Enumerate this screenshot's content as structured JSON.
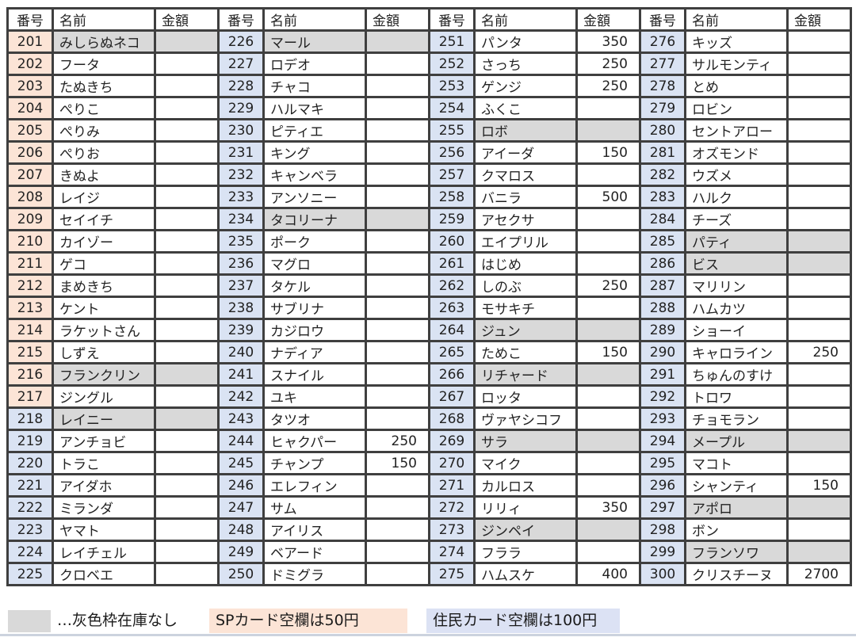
{
  "table": {
    "headers": [
      "番号",
      "名前",
      "金額"
    ],
    "row_count": 25,
    "sp_card_max_no": 217,
    "groups": [
      {
        "rows": [
          {
            "no": "201",
            "name": "みしらぬネコ",
            "price": "",
            "in_stock": false
          },
          {
            "no": "202",
            "name": "フータ",
            "price": ""
          },
          {
            "no": "203",
            "name": "たぬきち",
            "price": ""
          },
          {
            "no": "204",
            "name": "ぺりこ",
            "price": ""
          },
          {
            "no": "205",
            "name": "ぺりみ",
            "price": ""
          },
          {
            "no": "206",
            "name": "ぺりお",
            "price": ""
          },
          {
            "no": "207",
            "name": "きぬよ",
            "price": ""
          },
          {
            "no": "208",
            "name": "レイジ",
            "price": ""
          },
          {
            "no": "209",
            "name": "セイイチ",
            "price": ""
          },
          {
            "no": "210",
            "name": "カイゾー",
            "price": ""
          },
          {
            "no": "211",
            "name": "ゲコ",
            "price": ""
          },
          {
            "no": "212",
            "name": "まめきち",
            "price": ""
          },
          {
            "no": "213",
            "name": "ケント",
            "price": ""
          },
          {
            "no": "214",
            "name": "ラケットさん",
            "price": ""
          },
          {
            "no": "215",
            "name": "しずえ",
            "price": ""
          },
          {
            "no": "216",
            "name": "フランクリン",
            "price": "",
            "in_stock": false
          },
          {
            "no": "217",
            "name": "ジングル",
            "price": ""
          },
          {
            "no": "218",
            "name": "レイニー",
            "price": "",
            "in_stock": false
          },
          {
            "no": "219",
            "name": "アンチョビ",
            "price": ""
          },
          {
            "no": "220",
            "name": "トラこ",
            "price": ""
          },
          {
            "no": "221",
            "name": "アイダホ",
            "price": ""
          },
          {
            "no": "222",
            "name": "ミランダ",
            "price": ""
          },
          {
            "no": "223",
            "name": "ヤマト",
            "price": ""
          },
          {
            "no": "224",
            "name": "レイチェル",
            "price": ""
          },
          {
            "no": "225",
            "name": "クロベエ",
            "price": ""
          }
        ]
      },
      {
        "rows": [
          {
            "no": "226",
            "name": "マール",
            "price": "",
            "in_stock": false
          },
          {
            "no": "227",
            "name": "ロデオ",
            "price": ""
          },
          {
            "no": "228",
            "name": "チャコ",
            "price": ""
          },
          {
            "no": "229",
            "name": "ハルマキ",
            "price": ""
          },
          {
            "no": "230",
            "name": "ピティエ",
            "price": ""
          },
          {
            "no": "231",
            "name": "キング",
            "price": ""
          },
          {
            "no": "232",
            "name": "キャンベラ",
            "price": ""
          },
          {
            "no": "233",
            "name": "アンソニー",
            "price": ""
          },
          {
            "no": "234",
            "name": "タコリーナ",
            "price": "",
            "in_stock": false
          },
          {
            "no": "235",
            "name": "ポーク",
            "price": ""
          },
          {
            "no": "236",
            "name": "マグロ",
            "price": ""
          },
          {
            "no": "237",
            "name": "タケル",
            "price": ""
          },
          {
            "no": "238",
            "name": "サブリナ",
            "price": ""
          },
          {
            "no": "239",
            "name": "カジロウ",
            "price": ""
          },
          {
            "no": "240",
            "name": "ナディア",
            "price": ""
          },
          {
            "no": "241",
            "name": "スナイル",
            "price": ""
          },
          {
            "no": "242",
            "name": "ユキ",
            "price": ""
          },
          {
            "no": "243",
            "name": "タツオ",
            "price": ""
          },
          {
            "no": "244",
            "name": "ヒャクパー",
            "price": "250"
          },
          {
            "no": "245",
            "name": "チャンプ",
            "price": "150"
          },
          {
            "no": "246",
            "name": "エレフィン",
            "price": ""
          },
          {
            "no": "247",
            "name": "サム",
            "price": ""
          },
          {
            "no": "248",
            "name": "アイリス",
            "price": ""
          },
          {
            "no": "249",
            "name": "ベアード",
            "price": ""
          },
          {
            "no": "250",
            "name": "ドミグラ",
            "price": ""
          }
        ]
      },
      {
        "rows": [
          {
            "no": "251",
            "name": "パンタ",
            "price": "350"
          },
          {
            "no": "252",
            "name": "さっち",
            "price": "250"
          },
          {
            "no": "253",
            "name": "ゲンジ",
            "price": "250"
          },
          {
            "no": "254",
            "name": "ふくこ",
            "price": ""
          },
          {
            "no": "255",
            "name": "ロボ",
            "price": "",
            "in_stock": false
          },
          {
            "no": "256",
            "name": "アイーダ",
            "price": "150"
          },
          {
            "no": "257",
            "name": "クマロス",
            "price": ""
          },
          {
            "no": "258",
            "name": "バニラ",
            "price": "500"
          },
          {
            "no": "259",
            "name": "アセクサ",
            "price": ""
          },
          {
            "no": "260",
            "name": "エイプリル",
            "price": ""
          },
          {
            "no": "261",
            "name": "はじめ",
            "price": ""
          },
          {
            "no": "262",
            "name": "しのぶ",
            "price": "250"
          },
          {
            "no": "263",
            "name": "モサキチ",
            "price": ""
          },
          {
            "no": "264",
            "name": "ジュン",
            "price": "",
            "in_stock": false
          },
          {
            "no": "265",
            "name": "ためこ",
            "price": "150"
          },
          {
            "no": "266",
            "name": "リチャード",
            "price": "",
            "in_stock": false
          },
          {
            "no": "267",
            "name": "ロッタ",
            "price": ""
          },
          {
            "no": "268",
            "name": "ヴァヤシコフ",
            "price": ""
          },
          {
            "no": "269",
            "name": "サラ",
            "price": "",
            "in_stock": false
          },
          {
            "no": "270",
            "name": "マイク",
            "price": ""
          },
          {
            "no": "271",
            "name": "カルロス",
            "price": ""
          },
          {
            "no": "272",
            "name": "リリィ",
            "price": "350"
          },
          {
            "no": "273",
            "name": "ジンペイ",
            "price": "",
            "in_stock": false
          },
          {
            "no": "274",
            "name": "フララ",
            "price": ""
          },
          {
            "no": "275",
            "name": "ハムスケ",
            "price": "400"
          }
        ]
      },
      {
        "rows": [
          {
            "no": "276",
            "name": "キッズ",
            "price": ""
          },
          {
            "no": "277",
            "name": "サルモンティ",
            "price": ""
          },
          {
            "no": "278",
            "name": "とめ",
            "price": ""
          },
          {
            "no": "279",
            "name": "ロビン",
            "price": ""
          },
          {
            "no": "280",
            "name": "セントアロー",
            "price": ""
          },
          {
            "no": "281",
            "name": "オズモンド",
            "price": ""
          },
          {
            "no": "282",
            "name": "ウズメ",
            "price": ""
          },
          {
            "no": "283",
            "name": "ハルク",
            "price": ""
          },
          {
            "no": "284",
            "name": "チーズ",
            "price": ""
          },
          {
            "no": "285",
            "name": "パティ",
            "price": "",
            "in_stock": false
          },
          {
            "no": "286",
            "name": "ビス",
            "price": "",
            "in_stock": false
          },
          {
            "no": "287",
            "name": "マリリン",
            "price": ""
          },
          {
            "no": "288",
            "name": "ハムカツ",
            "price": ""
          },
          {
            "no": "289",
            "name": "ショーイ",
            "price": ""
          },
          {
            "no": "290",
            "name": "キャロライン",
            "price": "250"
          },
          {
            "no": "291",
            "name": "ちゅんのすけ",
            "price": ""
          },
          {
            "no": "292",
            "name": "トロワ",
            "price": ""
          },
          {
            "no": "293",
            "name": "チョモラン",
            "price": ""
          },
          {
            "no": "294",
            "name": "メープル",
            "price": "",
            "in_stock": false
          },
          {
            "no": "295",
            "name": "マコト",
            "price": ""
          },
          {
            "no": "296",
            "name": "シャンティ",
            "price": "150"
          },
          {
            "no": "297",
            "name": "アポロ",
            "price": "",
            "in_stock": false
          },
          {
            "no": "298",
            "name": "ボン",
            "price": ""
          },
          {
            "no": "299",
            "name": "フランソワ",
            "price": "",
            "in_stock": false
          },
          {
            "no": "300",
            "name": "クリスチーヌ",
            "price": "2700"
          }
        ]
      }
    ]
  },
  "legend": {
    "gray": "…灰色枠在庫なし",
    "sp": "SPカード空欄は50円",
    "resident": "住民カード空欄は100円"
  },
  "colors": {
    "sp_number_cell": "#fce4d6",
    "resident_number_cell": "#dae3f3",
    "out_of_stock_gray": "#d9d9d9",
    "grid_border": "#3f3f3f",
    "legend_sp_highlight": "#fce4d6",
    "legend_resident_highlight": "#dce2f4"
  }
}
